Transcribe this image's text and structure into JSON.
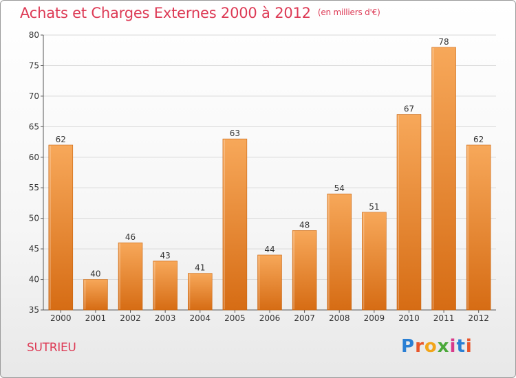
{
  "header": {
    "title": "Achats et Charges Externes 2000 à 2012",
    "unit": "(en milliers d'€)"
  },
  "footer": {
    "commune": "SUTRIEU",
    "brand": "Proxiti",
    "brand_colors": [
      "#2a7fd4",
      "#e8552a",
      "#f2a51a",
      "#4aa83a",
      "#d93a8a",
      "#2a7fd4",
      "#e8552a"
    ]
  },
  "colors": {
    "bar_top": "#f7a85a",
    "bar_bottom": "#d66c14",
    "title": "#dd3a55",
    "grid": "#d8d8d8",
    "axis": "#555555"
  },
  "chart_data": {
    "type": "bar",
    "categories": [
      "2000",
      "2001",
      "2002",
      "2003",
      "2004",
      "2005",
      "2006",
      "2007",
      "2008",
      "2009",
      "2010",
      "2011",
      "2012"
    ],
    "values": [
      62,
      40,
      46,
      43,
      41,
      63,
      44,
      48,
      54,
      51,
      67,
      78,
      62
    ],
    "title": "Achats et Charges Externes 2000 à 2012",
    "xlabel": "",
    "ylabel": "",
    "ylim": [
      35,
      80
    ],
    "yticks": [
      35,
      40,
      45,
      50,
      55,
      60,
      65,
      70,
      75,
      80
    ],
    "grid": true,
    "data_labels": true
  }
}
